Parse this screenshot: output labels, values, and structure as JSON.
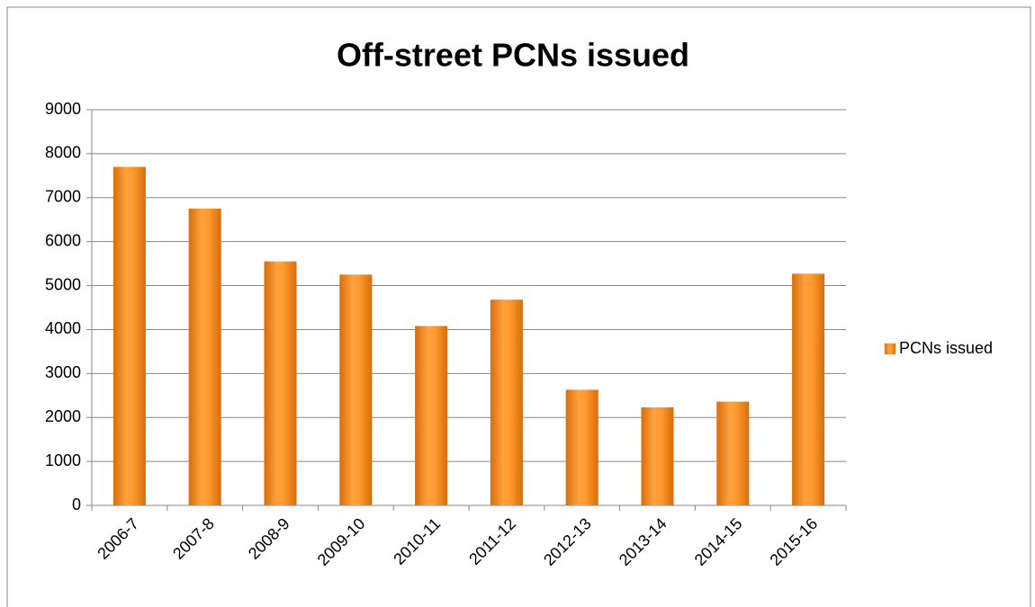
{
  "chart_data": {
    "type": "bar",
    "title": "Off-street PCNs issued",
    "categories": [
      "2006-7",
      "2007-8",
      "2008-9",
      "2009-10",
      "2010-11",
      "2011-12",
      "2012-13",
      "2013-14",
      "2014-15",
      "2015-16"
    ],
    "series": [
      {
        "name": "PCNs issued",
        "color": "#f7931e",
        "values": [
          7700,
          6750,
          5550,
          5250,
          4080,
          4680,
          2630,
          2230,
          2360,
          5270
        ]
      }
    ],
    "ylim": [
      0,
      9000
    ],
    "yticks": [
      0,
      1000,
      2000,
      3000,
      4000,
      5000,
      6000,
      7000,
      8000,
      9000
    ],
    "grid": true,
    "legend": "right"
  }
}
